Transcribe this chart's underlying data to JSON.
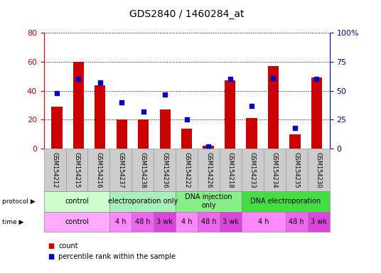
{
  "title": "GDS2840 / 1460284_at",
  "samples": [
    "GSM154212",
    "GSM154215",
    "GSM154216",
    "GSM154237",
    "GSM154238",
    "GSM154236",
    "GSM154222",
    "GSM154226",
    "GSM154218",
    "GSM154233",
    "GSM154234",
    "GSM154235",
    "GSM154230"
  ],
  "counts": [
    29,
    60,
    44,
    20,
    20,
    27,
    14,
    2,
    47,
    21,
    57,
    10,
    49
  ],
  "percentiles": [
    48,
    60,
    57,
    40,
    32,
    47,
    25,
    2,
    60,
    37,
    61,
    18,
    60
  ],
  "bar_color": "#cc0000",
  "dot_color": "#0000cc",
  "ylim_left": [
    0,
    80
  ],
  "ylim_right": [
    0,
    100
  ],
  "yticks_left": [
    0,
    20,
    40,
    60,
    80
  ],
  "yticks_right": [
    0,
    25,
    50,
    75,
    100
  ],
  "ytick_labels_right": [
    "0",
    "25",
    "50",
    "75",
    "100%"
  ],
  "protocol_groups": [
    {
      "label": "control",
      "start": 0,
      "end": 3,
      "color": "#ccffcc"
    },
    {
      "label": "electroporation only",
      "start": 3,
      "end": 6,
      "color": "#aaeebb"
    },
    {
      "label": "DNA injection\nonly",
      "start": 6,
      "end": 9,
      "color": "#88ee88"
    },
    {
      "label": "DNA electroporation",
      "start": 9,
      "end": 13,
      "color": "#44dd44"
    }
  ],
  "time_groups": [
    {
      "label": "control",
      "start": 0,
      "end": 3,
      "color": "#ffaaff"
    },
    {
      "label": "4 h",
      "start": 3,
      "end": 4,
      "color": "#ff88ff"
    },
    {
      "label": "48 h",
      "start": 4,
      "end": 5,
      "color": "#ee66ee"
    },
    {
      "label": "3 wk",
      "start": 5,
      "end": 6,
      "color": "#dd44dd"
    },
    {
      "label": "4 h",
      "start": 6,
      "end": 7,
      "color": "#ff88ff"
    },
    {
      "label": "48 h",
      "start": 7,
      "end": 8,
      "color": "#ee66ee"
    },
    {
      "label": "3 wk",
      "start": 8,
      "end": 9,
      "color": "#dd44dd"
    },
    {
      "label": "4 h",
      "start": 9,
      "end": 11,
      "color": "#ff88ff"
    },
    {
      "label": "48 h",
      "start": 11,
      "end": 12,
      "color": "#ee66ee"
    },
    {
      "label": "3 wk",
      "start": 12,
      "end": 13,
      "color": "#dd44dd"
    }
  ],
  "bg_color": "#ffffff",
  "plot_bg_color": "#ffffff",
  "tick_label_color_left": "#cc0000",
  "tick_label_color_right": "#0000cc",
  "sample_box_color": "#cccccc",
  "title_fontsize": 10,
  "tick_fontsize": 8,
  "sample_fontsize": 6,
  "row_fontsize": 7,
  "legend_fontsize": 7
}
